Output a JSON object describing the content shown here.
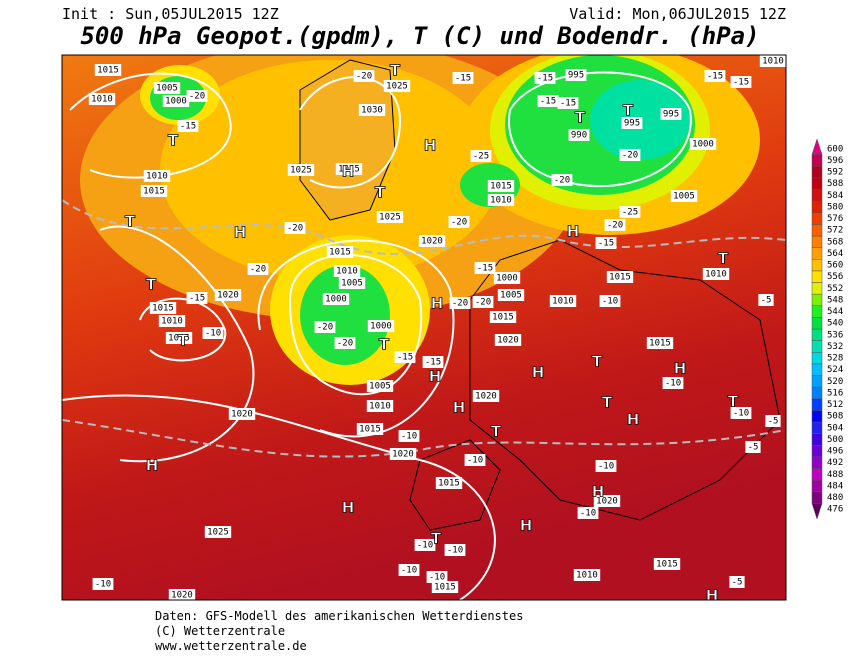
{
  "header": {
    "init": "Init : Sun,05JUL2015 12Z",
    "valid": "Valid: Mon,06JUL2015 12Z",
    "title": "500 hPa Geopot.(gpdm), T (C) und Bodendr. (hPa)"
  },
  "legend": {
    "values": [
      476,
      480,
      484,
      488,
      492,
      496,
      500,
      504,
      508,
      512,
      516,
      520,
      524,
      528,
      532,
      536,
      540,
      544,
      548,
      552,
      556,
      560,
      564,
      568,
      572,
      576,
      580,
      584,
      588,
      592,
      596,
      600
    ],
    "colors": [
      "#5a005a",
      "#80007f",
      "#a000a0",
      "#c000c0",
      "#9000c8",
      "#6a00d8",
      "#4000e0",
      "#2020f0",
      "#0000ff",
      "#0040ff",
      "#0080ff",
      "#00a0ff",
      "#00c0ff",
      "#00d8e0",
      "#00e0b0",
      "#00e080",
      "#00e040",
      "#20f020",
      "#80f000",
      "#e0f000",
      "#ffe000",
      "#ffc000",
      "#ffa000",
      "#ff8000",
      "#f86000",
      "#f04000",
      "#e02000",
      "#d01010",
      "#c00010",
      "#b00020",
      "#c00050",
      "#e00080"
    ]
  },
  "map": {
    "pressure_labels": [
      1015,
      1010,
      1005,
      1000,
      1010,
      1015,
      1030,
      1025,
      1025,
      1015,
      1025,
      1020,
      1015,
      1010,
      1005,
      1000,
      1000,
      1005,
      1010,
      1015,
      1020,
      1020,
      1025,
      1020,
      1015,
      1010,
      1015,
      1020,
      995,
      990,
      995,
      995,
      1000,
      1005,
      1015,
      1010,
      1000,
      1005,
      1010,
      1015,
      1020,
      1015,
      1010,
      1015,
      1020,
      1015,
      1020,
      1010,
      1015,
      1015,
      1010
    ],
    "temperature_labels": [
      -20,
      -15,
      -20,
      -15,
      -15,
      -15,
      -15,
      -20,
      -20,
      -15,
      -15,
      -20,
      -20,
      -25,
      -25,
      -20,
      -15,
      -20,
      -15,
      -10,
      -20,
      -20,
      -15,
      -15,
      -20,
      -20,
      -15,
      -10,
      -10,
      -10,
      -5,
      -5,
      -10,
      -10,
      -10,
      -10,
      -10,
      -10,
      -10,
      -10,
      -10,
      -5,
      -5
    ],
    "center_labels": [
      "H",
      "H",
      "H",
      "T",
      "T",
      "T",
      "T",
      "T",
      "T",
      "T",
      "T",
      "H",
      "T",
      "H",
      "T",
      "H",
      "H",
      "T",
      "H",
      "H",
      "T",
      "H",
      "T",
      "T",
      "H",
      "H",
      "H",
      "H",
      "T",
      "H"
    ]
  },
  "footer": {
    "source": "Daten: GFS-Modell des amerikanischen Wetterdienstes",
    "copyright": "(C) Wetterzentrale",
    "url": "www.wetterzentrale.de"
  }
}
